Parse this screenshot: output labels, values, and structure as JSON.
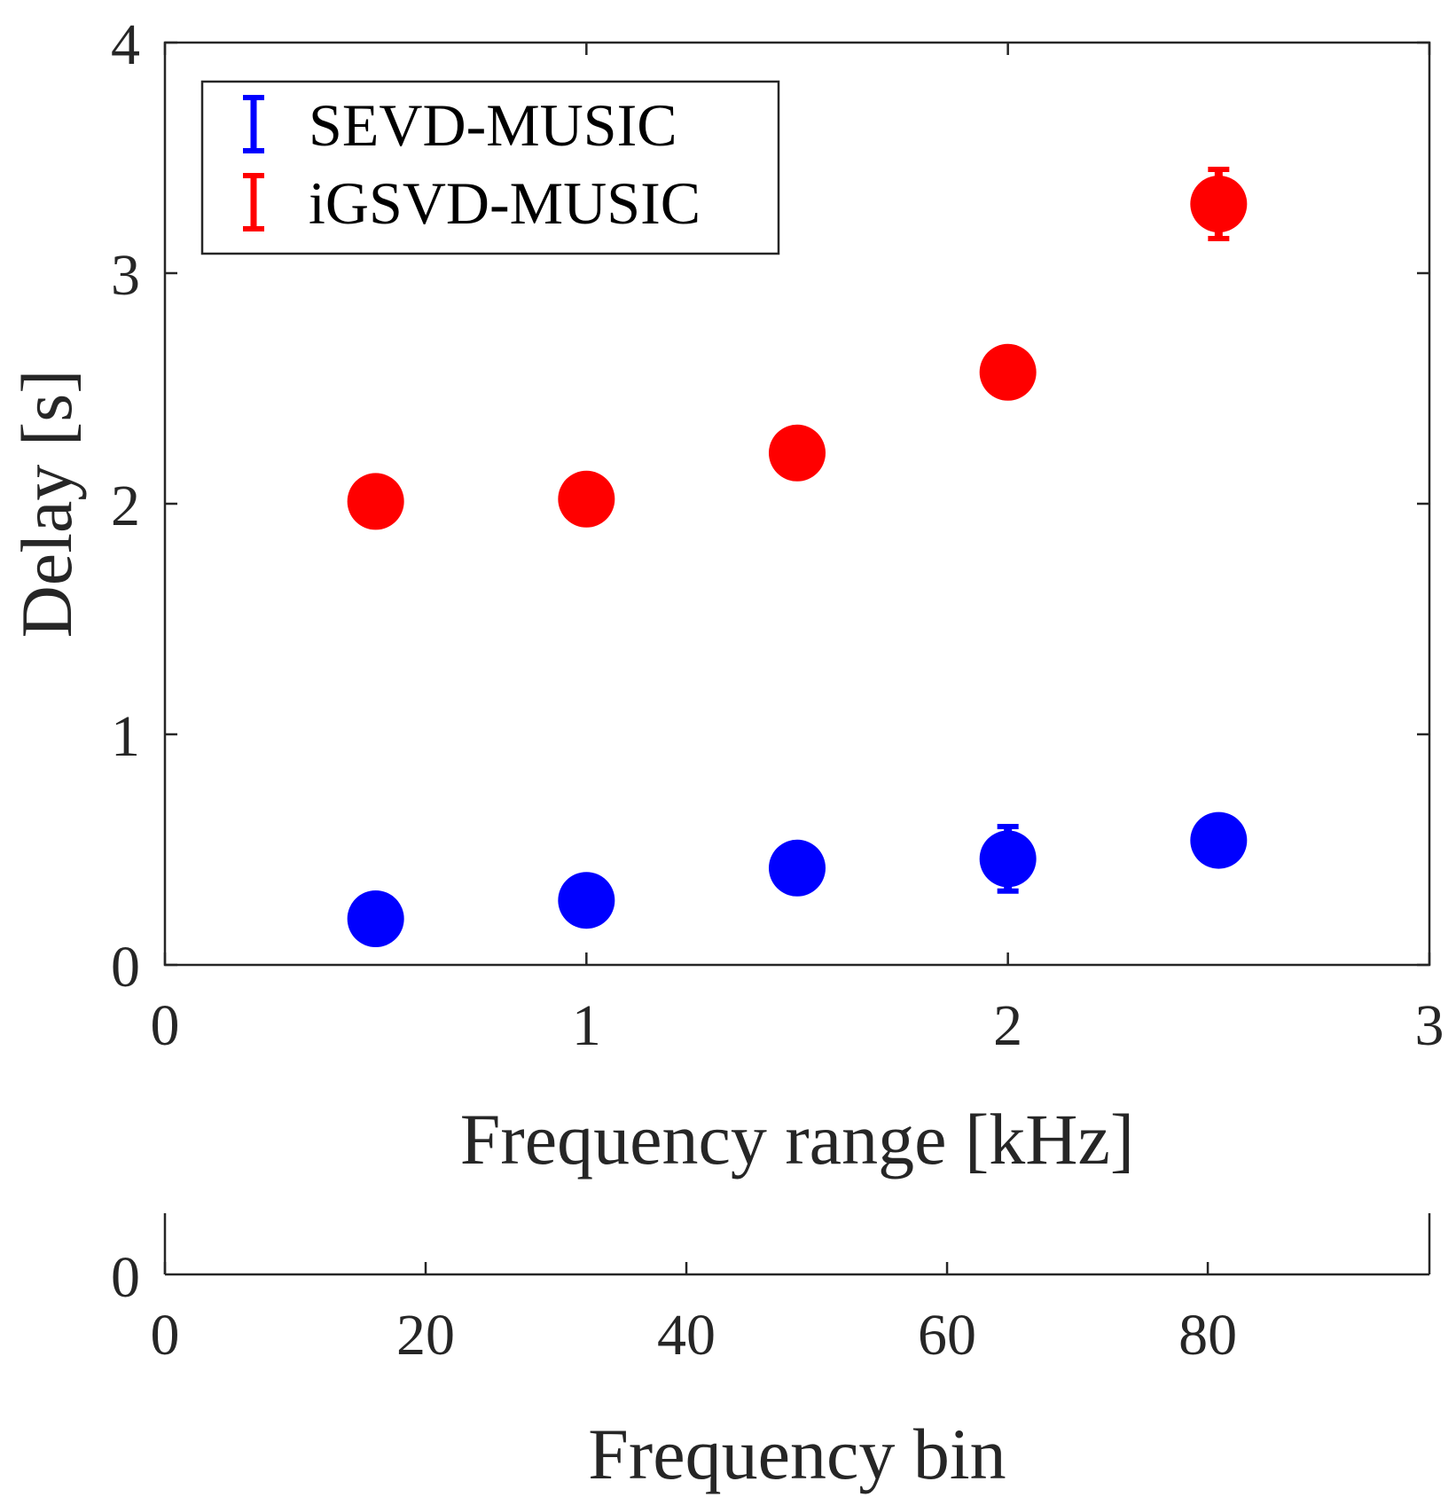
{
  "chart_data": [
    {
      "type": "scatter",
      "title": "",
      "xlabel": "Frequency range [kHz]",
      "ylabel": "Delay [s]",
      "xlim": [
        0,
        3
      ],
      "ylim": [
        0,
        4
      ],
      "xticks": [
        "0",
        "1",
        "2",
        "3"
      ],
      "yticks": [
        "0",
        "1",
        "2",
        "3",
        "4"
      ],
      "grid": false,
      "legend_position": "top-left",
      "series": [
        {
          "name": "SEVD-MUSIC",
          "color": "#0000ff",
          "x": [
            0.5,
            1.0,
            1.5,
            2.0,
            2.5
          ],
          "y": [
            0.2,
            0.28,
            0.42,
            0.46,
            0.54
          ],
          "error": [
            0.03,
            0.03,
            0.04,
            0.14,
            0.04
          ]
        },
        {
          "name": "iGSVD-MUSIC",
          "color": "#ff0000",
          "x": [
            0.5,
            1.0,
            1.5,
            2.0,
            2.5
          ],
          "y": [
            2.01,
            2.02,
            2.22,
            2.57,
            3.3
          ],
          "error": [
            0.03,
            0.03,
            0.04,
            0.04,
            0.15
          ]
        }
      ]
    },
    {
      "type": "axis",
      "xlabel": "Frequency bin",
      "xlim": [
        0,
        97
      ],
      "xticks": [
        "0",
        "20",
        "40",
        "60",
        "80"
      ],
      "xtick_values": [
        0,
        20,
        40,
        60,
        80
      ],
      "yticks": [
        "0"
      ]
    }
  ]
}
